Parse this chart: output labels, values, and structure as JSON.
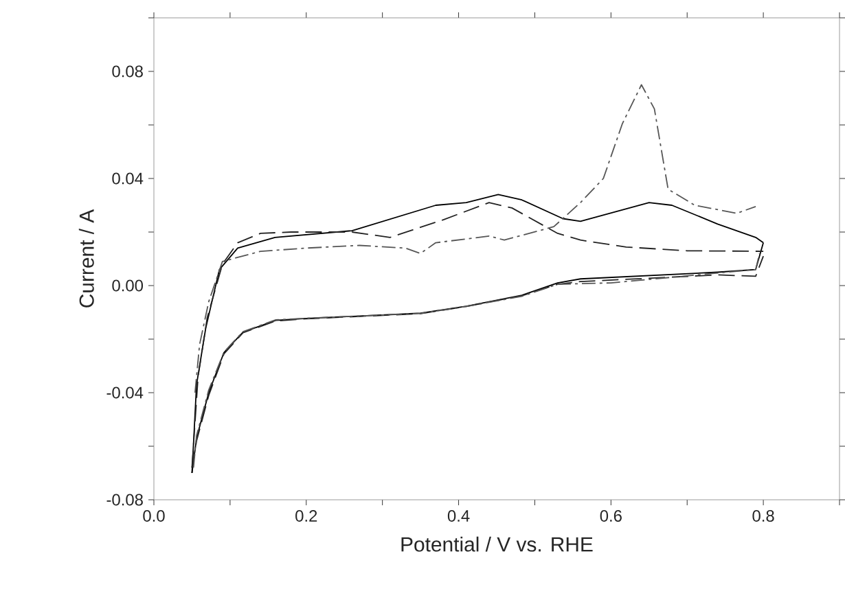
{
  "chart_data": {
    "type": "line",
    "xlabel": "Potential / V vs. RHE",
    "ylabel": "Current / A",
    "xlim": [
      0,
      0.9
    ],
    "ylim": [
      -0.08,
      0.1
    ],
    "xticks": [
      {
        "value": 0,
        "label": "0.0"
      },
      {
        "value": 0.1,
        "label": null
      },
      0.2,
      {
        "value": 0.3,
        "label": null
      },
      0.4,
      {
        "value": 0.5,
        "label": null
      },
      0.6,
      {
        "value": 0.7,
        "label": null
      },
      0.8,
      {
        "value": 0.9,
        "label": null
      }
    ],
    "yticks": [
      -0.08,
      {
        "value": -0.06,
        "label": null
      },
      -0.04,
      {
        "value": -0.02,
        "label": null
      },
      {
        "value": 0,
        "label": "0.00"
      },
      {
        "value": 0.02,
        "label": null
      },
      0.04,
      {
        "value": 0.06,
        "label": null
      },
      0.08,
      {
        "value": 0.1,
        "label": null
      }
    ],
    "grid": false,
    "marker": "none",
    "series": [
      {
        "color": "#000000",
        "line_style": "solid",
        "x": [
          0.05,
          0.056,
          0.068,
          0.086,
          0.11,
          0.159,
          0.26,
          0.37,
          0.41,
          0.452,
          0.483,
          0.537,
          0.56,
          0.65,
          0.68,
          0.74,
          0.79,
          0.8
        ],
        "values": [
          -0.07,
          -0.037,
          -0.016,
          0.006,
          0.014,
          0.018,
          0.0205,
          0.03,
          0.031,
          0.034,
          0.032,
          0.025,
          0.024,
          0.031,
          0.03,
          0.023,
          0.018,
          0.016
        ]
      },
      {
        "color": "#000000",
        "line_style": "solid",
        "x": [
          0.05,
          0.056,
          0.072,
          0.092,
          0.117,
          0.16,
          0.2,
          0.35,
          0.41,
          0.483,
          0.53,
          0.56,
          0.74,
          0.79,
          0.8
        ],
        "values": [
          -0.07,
          -0.057,
          -0.04,
          -0.025,
          -0.0174,
          -0.013,
          -0.0123,
          -0.0103,
          -0.0077,
          -0.0036,
          0.001,
          0.0025,
          0.005,
          0.006,
          0.016
        ]
      },
      {
        "color": "#222222",
        "line_style": "dashed",
        "x": [
          0.05,
          0.058,
          0.07,
          0.09,
          0.11,
          0.14,
          0.18,
          0.26,
          0.31,
          0.38,
          0.44,
          0.47,
          0.53,
          0.56,
          0.62,
          0.7,
          0.8
        ],
        "values": [
          -0.068,
          -0.034,
          -0.012,
          0.008,
          0.016,
          0.0195,
          0.02,
          0.02,
          0.018,
          0.0246,
          0.031,
          0.029,
          0.0195,
          0.017,
          0.0144,
          0.013,
          0.0128
        ]
      },
      {
        "color": "#222222",
        "line_style": "dashed",
        "x": [
          0.05,
          0.056,
          0.072,
          0.092,
          0.117,
          0.16,
          0.2,
          0.35,
          0.41,
          0.483,
          0.53,
          0.56,
          0.74,
          0.79,
          0.8
        ],
        "values": [
          -0.068,
          -0.058,
          -0.041,
          -0.0255,
          -0.0176,
          -0.0132,
          -0.0124,
          -0.0105,
          -0.0078,
          -0.0038,
          0.0005,
          0.0015,
          0.004,
          0.0035,
          0.011
        ]
      },
      {
        "color": "#555555",
        "line_style": "dashdot",
        "x": [
          0.054,
          0.06,
          0.072,
          0.09,
          0.14,
          0.2,
          0.27,
          0.33,
          0.35,
          0.37,
          0.44,
          0.46,
          0.525,
          0.56,
          0.59,
          0.615,
          0.64,
          0.657,
          0.675,
          0.71,
          0.765,
          0.79
        ],
        "values": [
          -0.04,
          -0.022,
          -0.006,
          0.009,
          0.0128,
          0.014,
          0.015,
          0.014,
          0.012,
          0.016,
          0.0185,
          0.017,
          0.022,
          0.031,
          0.04,
          0.0605,
          0.075,
          0.066,
          0.036,
          0.03,
          0.027,
          0.0295
        ]
      },
      {
        "color": "#555555",
        "line_style": "dashdot",
        "x": [
          0.052,
          0.056,
          0.072,
          0.092,
          0.117,
          0.16,
          0.2,
          0.35,
          0.41,
          0.483,
          0.53,
          0.6,
          0.79,
          0.795
        ],
        "values": [
          -0.068,
          -0.056,
          -0.039,
          -0.0248,
          -0.0172,
          -0.0128,
          -0.0122,
          -0.0104,
          -0.0078,
          -0.004,
          0.0005,
          0.001,
          0.006,
          0.012
        ]
      }
    ]
  }
}
